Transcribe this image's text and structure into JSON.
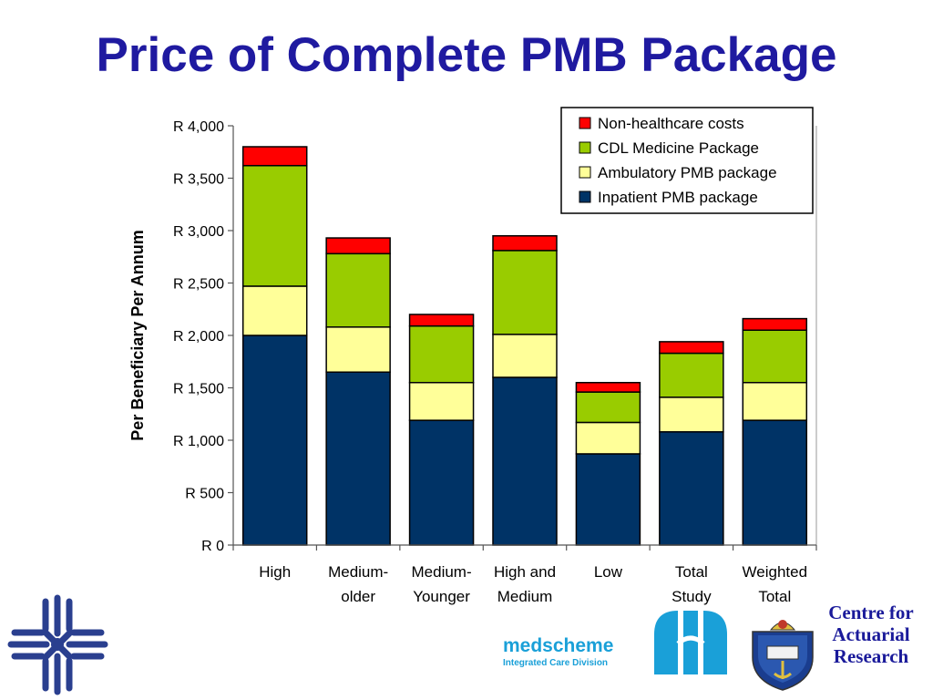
{
  "slide": {
    "title": "Price of Complete PMB Package"
  },
  "chart_data": {
    "type": "bar",
    "stacked": true,
    "categories": [
      [
        "High"
      ],
      [
        "Medium-",
        "older"
      ],
      [
        "Medium-",
        "Younger"
      ],
      [
        "High and",
        "Medium"
      ],
      [
        "Low"
      ],
      [
        "Total",
        "Study"
      ],
      [
        "Weighted",
        "Total"
      ]
    ],
    "series": [
      {
        "name": "Inpatient PMB package",
        "color": "#003366",
        "values": [
          2000,
          1650,
          1190,
          1600,
          870,
          1080,
          1190
        ]
      },
      {
        "name": "Ambulatory PMB package",
        "color": "#ffff99",
        "values": [
          470,
          430,
          360,
          410,
          300,
          330,
          360
        ]
      },
      {
        "name": "CDL Medicine Package",
        "color": "#99cc00",
        "values": [
          1150,
          700,
          540,
          800,
          290,
          420,
          500
        ]
      },
      {
        "name": "Non-healthcare costs",
        "color": "#ff0000",
        "values": [
          180,
          150,
          110,
          140,
          90,
          110,
          110
        ]
      }
    ],
    "ylabel": "Per Beneficiary Per Annum",
    "xlabel": "",
    "ylim": [
      0,
      4000
    ],
    "yticks": [
      0,
      500,
      1000,
      1500,
      2000,
      2500,
      3000,
      3500,
      4000
    ],
    "ytick_labels": [
      "R 0",
      "R 500",
      "R 1,000",
      "R 1,500",
      "R 2,000",
      "R 2,500",
      "R 3,000",
      "R 3,500",
      "R 4,000"
    ],
    "legend_order": [
      "Non-healthcare costs",
      "CDL Medicine Package",
      "Ambulatory PMB package",
      "Inpatient PMB package"
    ],
    "legend_position": "top-right",
    "grid": false
  },
  "logos": {
    "medscheme_name": "medscheme",
    "medscheme_division": "Integrated Care Division",
    "car_lines": [
      "Centre for",
      "Actuarial",
      "Research"
    ],
    "primary_color": "#1aa0d8",
    "left_logo_color": "#2a3f8f"
  }
}
